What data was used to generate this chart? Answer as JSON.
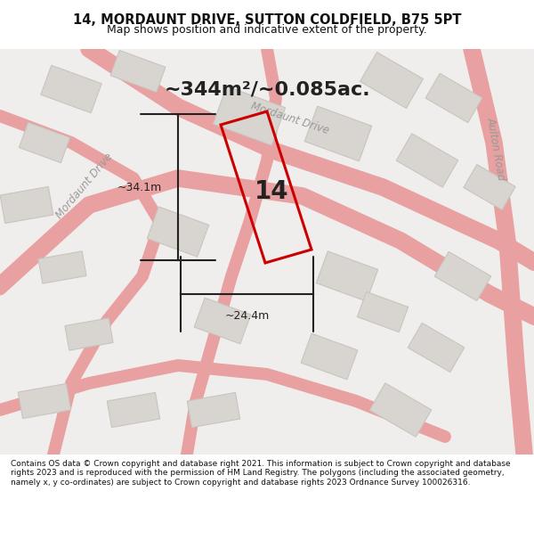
{
  "title_line1": "14, MORDAUNT DRIVE, SUTTON COLDFIELD, B75 5PT",
  "title_line2": "Map shows position and indicative extent of the property.",
  "area_text": "~344m²/~0.085ac.",
  "dim_height": "~34.1m",
  "dim_width": "~24.4m",
  "number_label": "14",
  "footer_text": "Contains OS data © Crown copyright and database right 2021. This information is subject to Crown copyright and database rights 2023 and is reproduced with the permission of HM Land Registry. The polygons (including the associated geometry, namely x, y co-ordinates) are subject to Crown copyright and database rights 2023 Ordnance Survey 100026316.",
  "bg_color": "#f0eeec",
  "map_bg": "#f0eeec",
  "plot_outline_color": "#cc0000",
  "road_color": "#e8a0a0",
  "building_color": "#d8d5d0",
  "building_edge_color": "#c8c5c0",
  "dim_color": "#222222",
  "text_color": "#333333",
  "title_color": "#111111"
}
